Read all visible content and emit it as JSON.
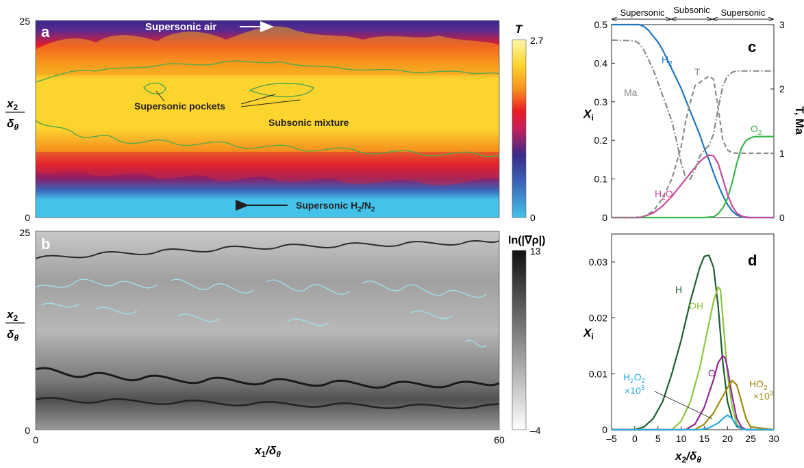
{
  "panel_a": {
    "letter": "a",
    "y_ticks": [
      "25",
      "0"
    ],
    "ylabel_num": "x",
    "ylabel_num_sub": "2",
    "ylabel_den": "δ",
    "ylabel_den_sub": "θ",
    "colorbar_title": "T",
    "colorbar_max": "2.7",
    "colorbar_min": "0",
    "colors": [
      "#45c2ea",
      "#3b63b8",
      "#3a2a8a",
      "#c31f5a",
      "#ec1c24",
      "#f7901e",
      "#fcd42e",
      "#fff7a8"
    ],
    "annotations": {
      "supersonic_air": "Supersonic air",
      "supersonic_pockets": "Supersonic pockets",
      "subsonic_mixture": "Subsonic mixture",
      "supersonic_h2n2": "Supersonic H",
      "sub2a": "2",
      "slash_n": "/N",
      "sub2b": "2"
    }
  },
  "panel_b": {
    "letter": "b",
    "y_ticks": [
      "25",
      "0"
    ],
    "ylabel_num": "x",
    "ylabel_num_sub": "2",
    "ylabel_den": "δ",
    "ylabel_den_sub": "θ",
    "colorbar_title": "ln(|∇ρ|)",
    "colorbar_max": "13",
    "colorbar_min": "–4",
    "x_ticks": [
      "0",
      "60"
    ],
    "xlabel_main": "x",
    "xlabel_sub": "1",
    "xlabel_den": "/δ",
    "xlabel_den_sub": "θ"
  },
  "chart_data": [
    {
      "type": "line",
      "panel": "c",
      "letter": "c",
      "xlim": [
        -5,
        30
      ],
      "ylim": [
        0,
        0.5
      ],
      "y2lim": [
        0,
        3
      ],
      "y_ticks": [
        0,
        0.1,
        0.2,
        0.3,
        0.4,
        0.5
      ],
      "y_tick_labels": [
        "0",
        "0.1",
        "0.2",
        "0.3",
        "0.4",
        "0.5"
      ],
      "y2_ticks": [
        0,
        1,
        2,
        3
      ],
      "y2_tick_labels": [
        "0",
        "1",
        "2",
        "3"
      ],
      "ylabel": "X",
      "ylabel_sub": "i",
      "y2label": "T, Ma",
      "regions": [
        "Supersonic",
        "Subsonic",
        "Supersonic"
      ],
      "series": [
        {
          "name": "H",
          "name_sub": "2",
          "color": "#1c75bc",
          "style": "solid",
          "axis": "left",
          "x": [
            -5,
            0,
            1,
            2,
            3,
            4,
            5,
            6,
            7,
            8,
            9,
            10,
            11,
            12,
            13,
            14,
            15,
            16,
            17,
            18,
            19,
            20,
            21,
            22,
            23,
            24,
            25,
            26,
            30
          ],
          "values": [
            0.5,
            0.5,
            0.5,
            0.495,
            0.485,
            0.47,
            0.455,
            0.435,
            0.41,
            0.385,
            0.36,
            0.335,
            0.305,
            0.275,
            0.245,
            0.215,
            0.18,
            0.15,
            0.115,
            0.085,
            0.057,
            0.034,
            0.017,
            0.007,
            0.002,
            0.0,
            0.0,
            0.0,
            0.0
          ]
        },
        {
          "name": "O",
          "name_sub": "2",
          "color": "#39b54a",
          "style": "solid",
          "axis": "left",
          "x": [
            -5,
            15,
            17,
            18,
            19,
            20,
            21,
            22,
            23,
            24,
            25,
            26,
            30
          ],
          "values": [
            0.0,
            0.0,
            0.002,
            0.01,
            0.025,
            0.05,
            0.09,
            0.14,
            0.18,
            0.2,
            0.207,
            0.21,
            0.21
          ]
        },
        {
          "name": "H",
          "name_sub": "2",
          "name_suffix": "O",
          "color": "#c84a9b",
          "style": "solid",
          "axis": "left",
          "x": [
            -5,
            1,
            2,
            4,
            6,
            8,
            10,
            12,
            14,
            15,
            16,
            17,
            18,
            19,
            20,
            21,
            22,
            23,
            24,
            25,
            30
          ],
          "values": [
            0.0,
            0.0,
            0.003,
            0.012,
            0.03,
            0.055,
            0.085,
            0.115,
            0.145,
            0.155,
            0.162,
            0.16,
            0.14,
            0.1,
            0.06,
            0.03,
            0.012,
            0.004,
            0.001,
            0.0,
            0.0
          ]
        },
        {
          "name": "T",
          "color": "#8a8a8a",
          "style": "dashed",
          "axis": "right",
          "x": [
            -5,
            0,
            2,
            4,
            6,
            8,
            10,
            11,
            12,
            13,
            14,
            15,
            16,
            17,
            18,
            19,
            20,
            21,
            22,
            23,
            24,
            25,
            26,
            30
          ],
          "values": [
            0.0,
            0.0,
            0.02,
            0.1,
            0.3,
            0.6,
            1.1,
            1.5,
            1.8,
            2.05,
            2.1,
            2.15,
            2.2,
            2.15,
            1.7,
            1.2,
            1.05,
            1.01,
            1.0,
            1.0,
            1.0,
            1.0,
            1.0,
            1.0
          ]
        },
        {
          "name": "Ma",
          "color": "#8a8a8a",
          "style": "dashdot",
          "axis": "right",
          "x": [
            -5,
            0,
            1,
            2,
            3,
            4,
            5,
            6,
            7,
            8,
            9,
            10,
            11,
            12,
            13,
            14,
            15,
            16,
            17,
            18,
            19,
            20,
            21,
            22,
            23,
            24,
            25,
            26,
            30
          ],
          "values": [
            2.76,
            2.75,
            2.7,
            2.6,
            2.45,
            2.3,
            2.1,
            1.9,
            1.7,
            1.5,
            1.2,
            0.85,
            0.62,
            0.6,
            0.75,
            0.95,
            1.05,
            1.12,
            1.3,
            1.7,
            2.05,
            2.2,
            2.26,
            2.28,
            2.28,
            2.28,
            2.28,
            2.28,
            2.28
          ]
        }
      ]
    },
    {
      "type": "line",
      "panel": "d",
      "letter": "d",
      "xlim": [
        -5,
        30
      ],
      "ylim": [
        0,
        0.035
      ],
      "x_ticks": [
        -5,
        0,
        5,
        10,
        15,
        20,
        25,
        30
      ],
      "x_tick_labels": [
        "–5",
        "0",
        "5",
        "10",
        "15",
        "20",
        "25",
        "30"
      ],
      "y_ticks": [
        0,
        0.01,
        0.02,
        0.03
      ],
      "y_tick_labels": [
        "0",
        "0.01",
        "0.02",
        "0.03"
      ],
      "ylabel": "X",
      "ylabel_sub": "i",
      "xlabel_main": "x",
      "xlabel_sub": "2",
      "xlabel_den": "/δ",
      "xlabel_den_sub": "θ",
      "series": [
        {
          "name": "H",
          "color": "#1a5e2e",
          "x": [
            -5,
            0,
            2,
            4,
            6,
            8,
            10,
            12,
            14,
            15,
            16,
            17,
            18,
            19,
            20,
            21,
            22,
            23,
            24,
            25,
            30
          ],
          "values": [
            0.0,
            0.0,
            0.0005,
            0.002,
            0.005,
            0.01,
            0.016,
            0.023,
            0.029,
            0.031,
            0.0312,
            0.029,
            0.022,
            0.012,
            0.005,
            0.002,
            0.0006,
            0.0002,
            0.0,
            0.0,
            0.0
          ]
        },
        {
          "name": "OH",
          "color": "#8dc63f",
          "x": [
            -5,
            8,
            10,
            12,
            14,
            16,
            17,
            18,
            18.5,
            19,
            20,
            21,
            22,
            23,
            24,
            30
          ],
          "values": [
            0.0,
            0.0,
            0.0015,
            0.005,
            0.011,
            0.019,
            0.023,
            0.0255,
            0.025,
            0.02,
            0.01,
            0.004,
            0.001,
            0.0002,
            0.0,
            0.0
          ]
        },
        {
          "name": "O",
          "color": "#92278f",
          "x": [
            -5,
            11,
            13,
            15,
            17,
            18,
            19,
            19.5,
            20,
            21,
            22,
            23,
            24,
            30
          ],
          "values": [
            0.0,
            0.0,
            0.001,
            0.004,
            0.009,
            0.012,
            0.0132,
            0.0128,
            0.011,
            0.006,
            0.002,
            0.0005,
            0.0,
            0.0
          ]
        },
        {
          "name": "HO",
          "name_sub": "2",
          "scale_label": "×10",
          "scale_sup": "3",
          "color": "#a08a0d",
          "x": [
            -5,
            13,
            15,
            17,
            19,
            20,
            21,
            22,
            23,
            24,
            25,
            30
          ],
          "values": [
            0.0,
            0.0,
            0.001,
            0.003,
            0.006,
            0.0075,
            0.0088,
            0.008,
            0.005,
            0.002,
            0.0005,
            0.0
          ]
        },
        {
          "name": "H",
          "name_sub": "2",
          "name_suffix": "O",
          "name_sub2": "2",
          "scale_label": "×10",
          "scale_sup": "3",
          "color": "#27aae1",
          "x": [
            -5,
            14,
            16,
            18,
            19,
            20,
            21,
            22,
            23,
            24,
            30
          ],
          "values": [
            0.0,
            0.0,
            0.0003,
            0.0012,
            0.002,
            0.0026,
            0.002,
            0.0008,
            0.0002,
            0.0,
            0.0
          ]
        }
      ]
    }
  ]
}
